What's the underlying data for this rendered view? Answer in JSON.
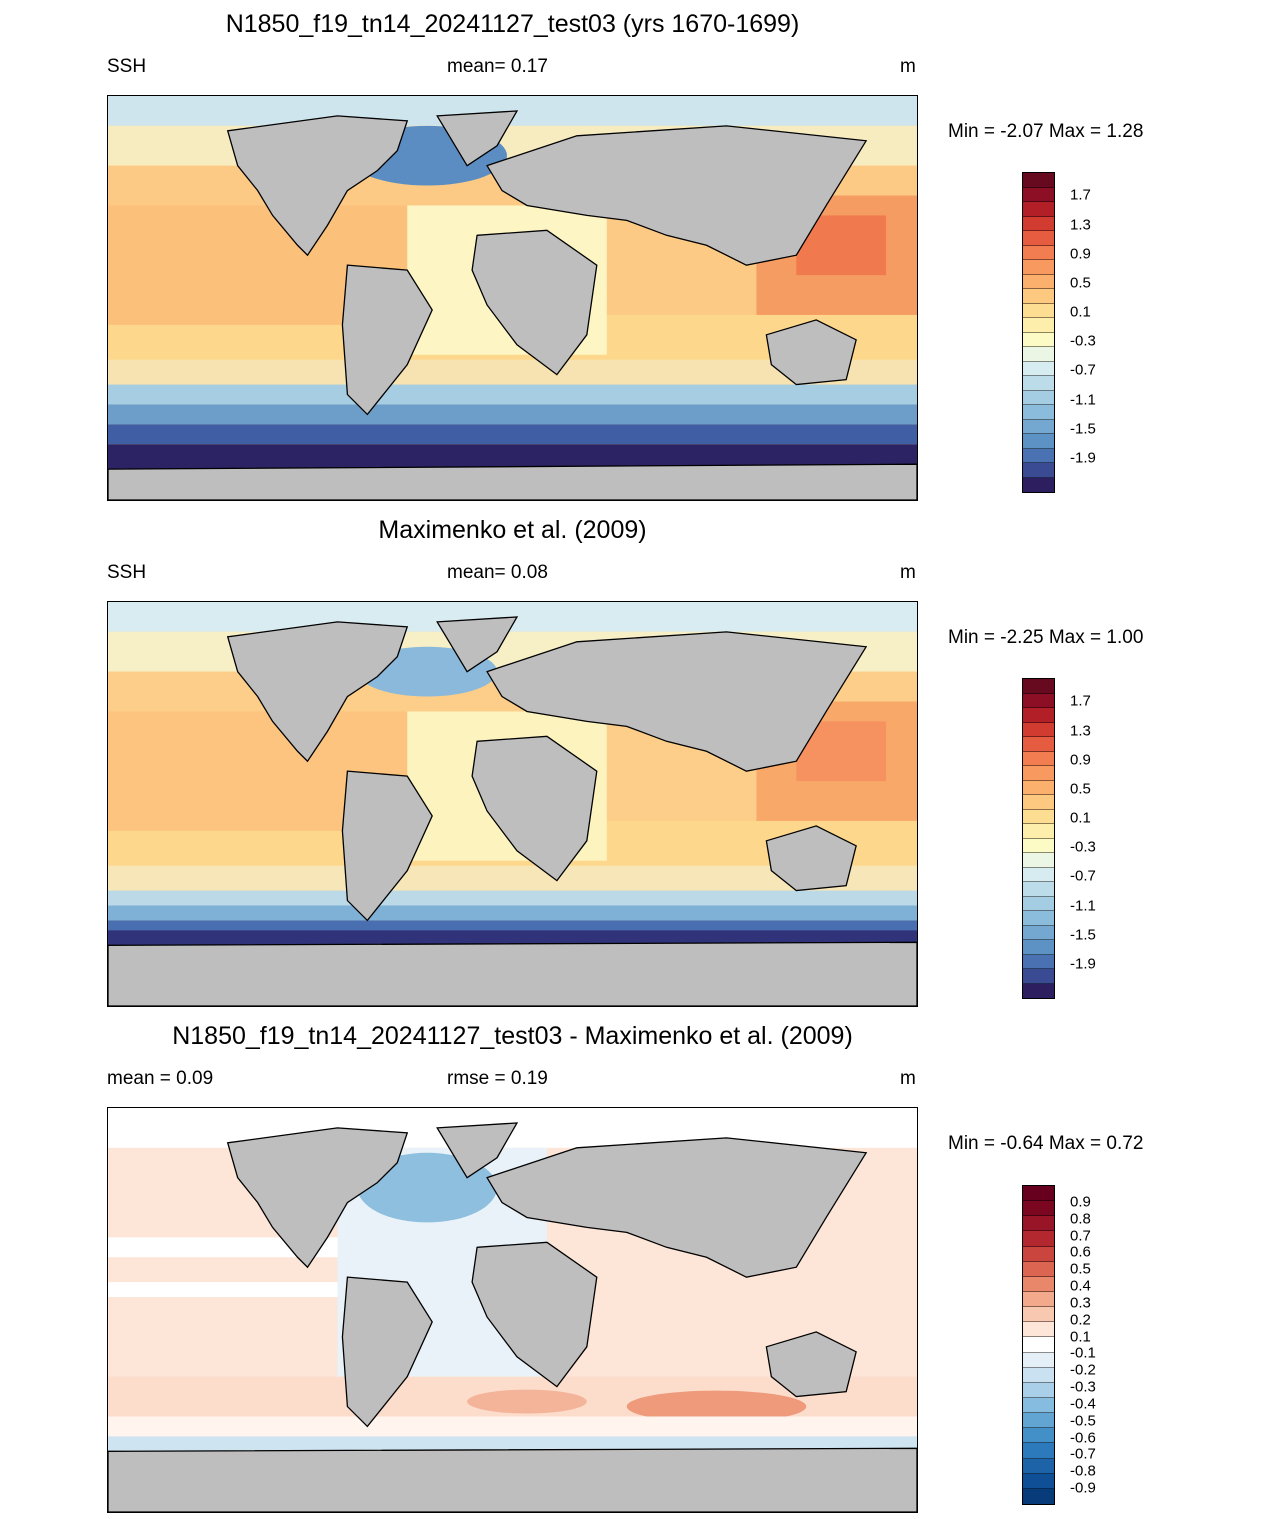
{
  "colors": {
    "land": "#bebebe",
    "ssh_scale": [
      "#2d1e5f",
      "#3a4b94",
      "#4a72b2",
      "#5d92c5",
      "#75a8d0",
      "#8bbcdb",
      "#a4cde3",
      "#bddcea",
      "#d6ecf1",
      "#ecf6e4",
      "#fcfbc6",
      "#fdeeab",
      "#fddd91",
      "#fdc880",
      "#fbb06e",
      "#f89960",
      "#f27d50",
      "#e65c40",
      "#d23b2f",
      "#b31f27",
      "#8c0f25",
      "#680a1f"
    ],
    "diff_scale": [
      "#073b7a",
      "#0e4f95",
      "#1c63a8",
      "#2c7abb",
      "#438fc7",
      "#62a4d2",
      "#86bcdf",
      "#a9d0e8",
      "#c9e1f0",
      "#e4eff7",
      "#ffffff",
      "#fde5d8",
      "#f9c8b1",
      "#f3a98c",
      "#e9876b",
      "#dc6551",
      "#c9453d",
      "#b3282e",
      "#981427",
      "#7a0620",
      "#67001f"
    ]
  },
  "panels": [
    {
      "title": "N1850_f19_tn14_20241127_test03 (yrs 1670-1699)",
      "left_label": "SSH",
      "center_label": "mean=   0.17",
      "right_label": "m",
      "minmax": "Min =  -2.07 Max =    1.28",
      "colorbar_labels": [
        "1.7",
        "1.3",
        "0.9",
        "0.5",
        "0.1",
        "-0.3",
        "-0.7",
        "-1.1",
        "-1.5",
        "-1.9"
      ],
      "map_kind": "ssh"
    },
    {
      "title": "Maximenko et al. (2009)",
      "left_label": "SSH",
      "center_label": "mean=   0.08",
      "right_label": "m",
      "minmax": "Min =  -2.25 Max =    1.00",
      "colorbar_labels": [
        "1.7",
        "1.3",
        "0.9",
        "0.5",
        "0.1",
        "-0.3",
        "-0.7",
        "-1.1",
        "-1.5",
        "-1.9"
      ],
      "map_kind": "ssh_obs"
    },
    {
      "title": "N1850_f19_tn14_20241127_test03 - Maximenko et al. (2009)",
      "left_label": "mean =    0.09",
      "center_label": "rmse =    0.19",
      "right_label": "m",
      "minmax": "Min =  -0.64 Max =    0.72",
      "colorbar_labels": [
        "0.9",
        "0.8",
        "0.7",
        "0.6",
        "0.5",
        "0.4",
        "0.3",
        "0.2",
        "0.1",
        "-0.1",
        "-0.2",
        "-0.3",
        "-0.4",
        "-0.5",
        "-0.6",
        "-0.7",
        "-0.8",
        "-0.9"
      ],
      "map_kind": "diff"
    }
  ]
}
